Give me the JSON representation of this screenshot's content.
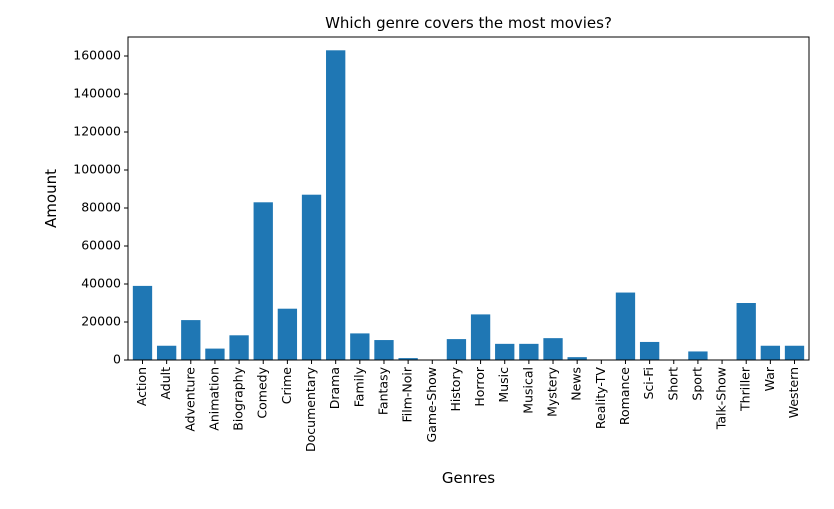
{
  "chart_data": {
    "type": "bar",
    "title": "Which genre covers the most movies?",
    "xlabel": "Genres",
    "ylabel": "Amount",
    "ylim": [
      0,
      170000
    ],
    "yticks": [
      0,
      20000,
      40000,
      60000,
      80000,
      100000,
      120000,
      140000,
      160000
    ],
    "grid": false,
    "bar_color": "#1f77b4",
    "categories": [
      "Action",
      "Adult",
      "Adventure",
      "Animation",
      "Biography",
      "Comedy",
      "Crime",
      "Documentary",
      "Drama",
      "Family",
      "Fantasy",
      "Film-Noir",
      "Game-Show",
      "History",
      "Horror",
      "Music",
      "Musical",
      "Mystery",
      "News",
      "Reality-TV",
      "Romance",
      "Sci-Fi",
      "Short",
      "Sport",
      "Talk-Show",
      "Thriller",
      "War",
      "Western"
    ],
    "values": [
      39000,
      7500,
      21000,
      6000,
      13000,
      83000,
      27000,
      87000,
      163000,
      14000,
      10500,
      1000,
      0,
      11000,
      24000,
      8500,
      8500,
      11500,
      1500,
      0,
      35500,
      9500,
      0,
      4500,
      0,
      30000,
      7500,
      7500
    ]
  }
}
